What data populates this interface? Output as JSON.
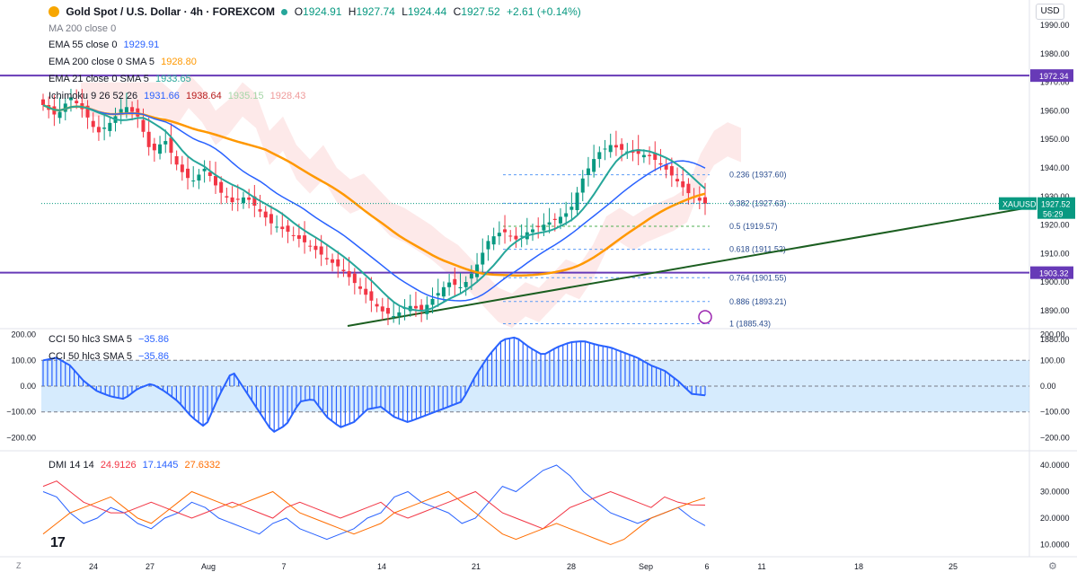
{
  "header": {
    "symbol_title": "Gold Spot / U.S. Dollar · 4h · FOREXCOM",
    "o_label": "O",
    "o_value": "1924.91",
    "h_label": "H",
    "h_value": "1927.74",
    "l_label": "L",
    "l_value": "1924.44",
    "c_label": "C",
    "c_value": "1927.52",
    "change": "+2.61 (+0.14%)",
    "currency": "USD"
  },
  "indicators": {
    "ma200": {
      "name": "MA 200 close 0",
      "value": ""
    },
    "ema55": {
      "name": "EMA 55 close 0",
      "value": "1929.91"
    },
    "ema200": {
      "name": "EMA 200 close 0 SMA 5",
      "value": "1928.80"
    },
    "ema21": {
      "name": "EMA 21 close 0 SMA 5",
      "value": "1933.65"
    },
    "ichimoku": {
      "name": "Ichimoku 9 26 52 26",
      "v1": "1931.66",
      "v2": "1938.64",
      "v3": "1935.15",
      "v4": "1928.43"
    },
    "cci1": {
      "name": "CCI 50 hlc3 SMA 5",
      "value": "−35.86"
    },
    "cci2": {
      "name": "CCI 50 hlc3 SMA 5",
      "value": "−35.86"
    },
    "dmi": {
      "name": "DMI 14 14",
      "v1": "24.9126",
      "v2": "17.1445",
      "v3": "27.6332"
    }
  },
  "price_axis": {
    "ticks": [
      "1990.00",
      "1980.00",
      "1970.00",
      "1960.00",
      "1950.00",
      "1940.00",
      "1930.00",
      "1920.00",
      "1910.00",
      "1900.00",
      "1890.00",
      "1880.00"
    ],
    "tick_values": [
      1990,
      1980,
      1970,
      1960,
      1950,
      1940,
      1930,
      1920,
      1910,
      1900,
      1890,
      1880
    ],
    "level_1972": "1972.34",
    "level_1903": "1903.32",
    "symbol_tag": "XAUUSD",
    "last_price": "1927.52",
    "countdown": "56:29"
  },
  "cci_axis": {
    "ticks": [
      "200.00",
      "100.00",
      "0.00",
      "−100.00",
      "−200.00"
    ],
    "tick_values": [
      200,
      100,
      0,
      -100,
      -200
    ]
  },
  "dmi_axis": {
    "ticks": [
      "40.0000",
      "30.0000",
      "20.0000",
      "10.0000"
    ],
    "tick_values": [
      40,
      30,
      20,
      10
    ]
  },
  "time_axis": {
    "labels": [
      "24",
      "27",
      "Aug",
      "7",
      "14",
      "21",
      "28",
      "Sep",
      "6",
      "11",
      "18",
      "25"
    ]
  },
  "fib_labels": [
    "0.236 (1937.60)",
    "0.382 (1927.63)",
    "0.5 (1919.57)",
    "0.618 (1911.52)",
    "0.764 (1901.55)",
    "0.886 (1893.21)",
    "1 (1885.43)"
  ],
  "fib_levels": [
    1937.6,
    1927.63,
    1919.57,
    1911.52,
    1901.55,
    1893.21,
    1885.43
  ],
  "bottom": {
    "z_label": "Z",
    "logo": "17"
  },
  "colors": {
    "up": "#089981",
    "down": "#f23645",
    "ema200": "#ff9800",
    "ema55": "#2962ff",
    "ema21": "#26a69a",
    "hline": "#673ab7",
    "trend": "#1b5e20",
    "cci": "#2962ff",
    "dmi_plus": "#2962ff",
    "dmi_minus": "#f23645",
    "adx": "#ff6d00"
  },
  "chart_data": [
    {
      "type": "candlestick",
      "title": "Gold Spot / U.S. Dollar · 4h · FOREXCOM",
      "ylim": [
        1875,
        1995
      ],
      "x": [
        "24",
        "27",
        "Aug",
        "7",
        "14",
        "21",
        "28",
        "Sep",
        "6"
      ],
      "close_path": [
        1962,
        1958,
        1965,
        1960,
        1952,
        1956,
        1962,
        1958,
        1945,
        1950,
        1940,
        1935,
        1940,
        1932,
        1928,
        1930,
        1925,
        1920,
        1918,
        1915,
        1912,
        1908,
        1905,
        1900,
        1895,
        1890,
        1888,
        1892,
        1890,
        1895,
        1900,
        1898,
        1905,
        1915,
        1918,
        1915,
        1918,
        1920,
        1922,
        1925,
        1937,
        1945,
        1948,
        1946,
        1945,
        1944,
        1940,
        1935,
        1930,
        1927.52
      ],
      "horizontal_levels": [
        1972.34,
        1903.32
      ]
    },
    {
      "type": "line",
      "title": "CCI 50 hlc3 SMA 5",
      "ylim": [
        -220,
        220
      ],
      "values": [
        100,
        110,
        80,
        20,
        -20,
        -40,
        -50,
        -10,
        10,
        -20,
        -60,
        -120,
        -160,
        -40,
        60,
        -20,
        -100,
        -180,
        -150,
        -60,
        -50,
        -120,
        -160,
        -140,
        -90,
        -80,
        -120,
        -140,
        -120,
        -100,
        -80,
        -60,
        40,
        120,
        180,
        190,
        150,
        120,
        150,
        170,
        175,
        160,
        150,
        130,
        110,
        80,
        60,
        20,
        -30,
        -35.86
      ]
    },
    {
      "type": "line",
      "title": "DMI 14 14",
      "ylim": [
        5,
        45
      ],
      "series": [
        {
          "name": "",
          "values": [
            30,
            28,
            22,
            18,
            20,
            24,
            22,
            18,
            16,
            20,
            22,
            26,
            24,
            20,
            18,
            16,
            14,
            18,
            20,
            16,
            14,
            12,
            14,
            16,
            20,
            22,
            28,
            30,
            26,
            24,
            22,
            18,
            20,
            26,
            32,
            30,
            34,
            38,
            40,
            36,
            30,
            26,
            22,
            20,
            18,
            20,
            22,
            24,
            20,
            17.1445
          ]
        },
        {
          "name": "",
          "values": [
            32,
            34,
            30,
            26,
            24,
            22,
            22,
            24,
            26,
            24,
            22,
            20,
            22,
            24,
            26,
            24,
            22,
            20,
            24,
            26,
            24,
            22,
            20,
            22,
            24,
            26,
            22,
            20,
            22,
            24,
            26,
            28,
            30,
            26,
            22,
            20,
            18,
            16,
            20,
            24,
            26,
            28,
            30,
            28,
            26,
            24,
            28,
            26,
            25,
            24.9126
          ]
        },
        {
          "name": "",
          "values": [
            14,
            18,
            22,
            24,
            26,
            28,
            24,
            20,
            18,
            22,
            26,
            30,
            28,
            26,
            24,
            26,
            28,
            30,
            26,
            22,
            20,
            18,
            16,
            14,
            16,
            18,
            22,
            24,
            26,
            28,
            30,
            26,
            22,
            18,
            14,
            12,
            14,
            16,
            18,
            16,
            14,
            12,
            10,
            12,
            16,
            20,
            22,
            24,
            26,
            27.6332
          ]
        }
      ]
    }
  ]
}
